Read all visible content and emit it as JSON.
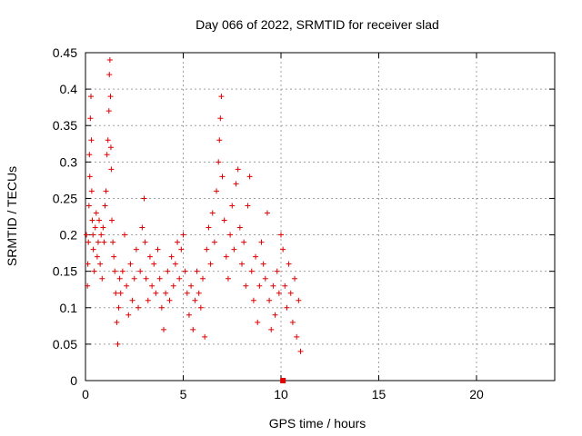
{
  "chart_data": {
    "type": "scatter",
    "title": "Day 066 of 2022, SRMTID for receiver slad",
    "xlabel": "GPS time / hours",
    "ylabel": "SRMTID / TECUs",
    "xlim": [
      0,
      24
    ],
    "ylim": [
      0,
      0.45
    ],
    "x_ticks": [
      0,
      5,
      10,
      15,
      20
    ],
    "y_ticks": [
      0,
      0.05,
      0.1,
      0.15,
      0.2,
      0.25,
      0.3,
      0.35,
      0.4,
      0.45
    ],
    "grid": true,
    "marker_color": "#e00000",
    "series": [
      {
        "name": "SRMTID",
        "marker": "plus",
        "points": [
          [
            0.05,
            0.2
          ],
          [
            0.1,
            0.13
          ],
          [
            0.12,
            0.16
          ],
          [
            0.15,
            0.19
          ],
          [
            0.18,
            0.24
          ],
          [
            0.2,
            0.31
          ],
          [
            0.22,
            0.28
          ],
          [
            0.25,
            0.36
          ],
          [
            0.28,
            0.39
          ],
          [
            0.3,
            0.33
          ],
          [
            0.32,
            0.26
          ],
          [
            0.35,
            0.22
          ],
          [
            0.38,
            0.2
          ],
          [
            0.4,
            0.18
          ],
          [
            0.45,
            0.15
          ],
          [
            0.5,
            0.21
          ],
          [
            0.55,
            0.23
          ],
          [
            0.6,
            0.17
          ],
          [
            0.65,
            0.19
          ],
          [
            0.7,
            0.22
          ],
          [
            0.75,
            0.16
          ],
          [
            0.8,
            0.2
          ],
          [
            0.85,
            0.14
          ],
          [
            0.9,
            0.21
          ],
          [
            0.95,
            0.19
          ],
          [
            1.0,
            0.24
          ],
          [
            1.05,
            0.26
          ],
          [
            1.1,
            0.31
          ],
          [
            1.15,
            0.33
          ],
          [
            1.2,
            0.37
          ],
          [
            1.22,
            0.42
          ],
          [
            1.25,
            0.44
          ],
          [
            1.28,
            0.39
          ],
          [
            1.3,
            0.32
          ],
          [
            1.32,
            0.29
          ],
          [
            1.35,
            0.22
          ],
          [
            1.4,
            0.19
          ],
          [
            1.45,
            0.17
          ],
          [
            1.5,
            0.15
          ],
          [
            1.55,
            0.12
          ],
          [
            1.6,
            0.08
          ],
          [
            1.65,
            0.05
          ],
          [
            1.7,
            0.1
          ],
          [
            1.75,
            0.14
          ],
          [
            1.8,
            0.12
          ],
          [
            1.9,
            0.15
          ],
          [
            2.0,
            0.2
          ],
          [
            2.1,
            0.13
          ],
          [
            2.2,
            0.09
          ],
          [
            2.3,
            0.16
          ],
          [
            2.4,
            0.11
          ],
          [
            2.5,
            0.14
          ],
          [
            2.6,
            0.18
          ],
          [
            2.7,
            0.1
          ],
          [
            2.8,
            0.15
          ],
          [
            2.9,
            0.21
          ],
          [
            3.0,
            0.25
          ],
          [
            3.05,
            0.19
          ],
          [
            3.1,
            0.14
          ],
          [
            3.2,
            0.11
          ],
          [
            3.3,
            0.17
          ],
          [
            3.4,
            0.13
          ],
          [
            3.5,
            0.16
          ],
          [
            3.6,
            0.12
          ],
          [
            3.7,
            0.18
          ],
          [
            3.8,
            0.14
          ],
          [
            3.9,
            0.1
          ],
          [
            4.0,
            0.07
          ],
          [
            4.1,
            0.12
          ],
          [
            4.2,
            0.15
          ],
          [
            4.3,
            0.11
          ],
          [
            4.4,
            0.17
          ],
          [
            4.5,
            0.13
          ],
          [
            4.6,
            0.16
          ],
          [
            4.7,
            0.19
          ],
          [
            4.8,
            0.14
          ],
          [
            4.9,
            0.18
          ],
          [
            5.0,
            0.2
          ],
          [
            5.1,
            0.15
          ],
          [
            5.2,
            0.12
          ],
          [
            5.3,
            0.09
          ],
          [
            5.4,
            0.13
          ],
          [
            5.5,
            0.07
          ],
          [
            5.6,
            0.11
          ],
          [
            5.7,
            0.15
          ],
          [
            5.8,
            0.12
          ],
          [
            5.9,
            0.1
          ],
          [
            6.0,
            0.14
          ],
          [
            6.1,
            0.06
          ],
          [
            6.2,
            0.18
          ],
          [
            6.3,
            0.21
          ],
          [
            6.4,
            0.16
          ],
          [
            6.5,
            0.23
          ],
          [
            6.6,
            0.19
          ],
          [
            6.7,
            0.26
          ],
          [
            6.8,
            0.3
          ],
          [
            6.85,
            0.33
          ],
          [
            6.9,
            0.36
          ],
          [
            6.95,
            0.39
          ],
          [
            7.0,
            0.28
          ],
          [
            7.1,
            0.22
          ],
          [
            7.2,
            0.17
          ],
          [
            7.3,
            0.14
          ],
          [
            7.4,
            0.2
          ],
          [
            7.5,
            0.24
          ],
          [
            7.6,
            0.18
          ],
          [
            7.7,
            0.27
          ],
          [
            7.8,
            0.29
          ],
          [
            7.9,
            0.21
          ],
          [
            8.0,
            0.16
          ],
          [
            8.1,
            0.19
          ],
          [
            8.2,
            0.13
          ],
          [
            8.3,
            0.24
          ],
          [
            8.4,
            0.28
          ],
          [
            8.5,
            0.15
          ],
          [
            8.6,
            0.11
          ],
          [
            8.7,
            0.17
          ],
          [
            8.8,
            0.08
          ],
          [
            8.9,
            0.13
          ],
          [
            9.0,
            0.19
          ],
          [
            9.1,
            0.16
          ],
          [
            9.2,
            0.14
          ],
          [
            9.3,
            0.23
          ],
          [
            9.4,
            0.11
          ],
          [
            9.5,
            0.07
          ],
          [
            9.6,
            0.13
          ],
          [
            9.7,
            0.09
          ],
          [
            9.8,
            0.15
          ],
          [
            9.9,
            0.12
          ],
          [
            10.0,
            0.2
          ],
          [
            10.1,
            0.18
          ],
          [
            10.2,
            0.13
          ],
          [
            10.3,
            0.1
          ],
          [
            10.4,
            0.16
          ],
          [
            10.5,
            0.12
          ],
          [
            10.6,
            0.08
          ],
          [
            10.7,
            0.14
          ],
          [
            10.8,
            0.06
          ],
          [
            10.9,
            0.11
          ],
          [
            11.0,
            0.04
          ]
        ]
      },
      {
        "name": "marker",
        "marker": "square",
        "points": [
          [
            10.1,
            0.0
          ]
        ]
      }
    ]
  }
}
